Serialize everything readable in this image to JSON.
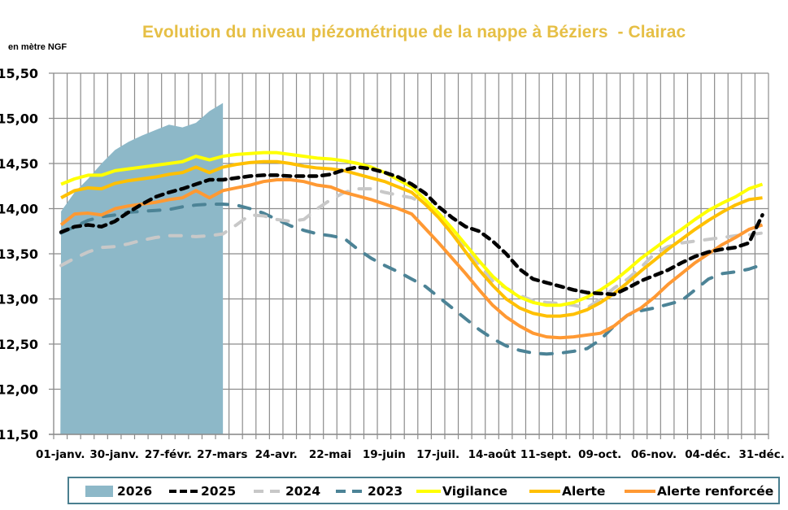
{
  "chart_data": {
    "type": "line",
    "title": "Evolution du niveau piézométrique de la nappe à Béziers  - Clairac",
    "ylabel": "en mètre NGF",
    "xlabel": "",
    "ylim": [
      11.5,
      15.5
    ],
    "yticks": [
      "15,50",
      "15,00",
      "14,50",
      "14,00",
      "13,50",
      "13,00",
      "12,50",
      "12,00",
      "11,50"
    ],
    "ytick_values": [
      15.5,
      15.0,
      14.5,
      14.0,
      13.5,
      13.0,
      12.5,
      12.0,
      11.5
    ],
    "xtick_labels": [
      "01-janv.",
      "30-janv.",
      "27-févr.",
      "27-mars",
      "24-avr.",
      "22-mai",
      "19-juin",
      "17-juil.",
      "14-août",
      "11-sept.",
      "09-oct.",
      "06-nov.",
      "04-déc.",
      "31-déc."
    ],
    "xtick_weeks": [
      0,
      4,
      8,
      12,
      16,
      20,
      24,
      28,
      32,
      36,
      40,
      44,
      48,
      52
    ],
    "n_weeks": 53,
    "grid": true,
    "legend_position": "bottom",
    "series": [
      {
        "name": "2026",
        "style": "area",
        "color": "#8DB8C8",
        "values": [
          13.97,
          14.18,
          14.33,
          14.5,
          14.65,
          14.74,
          14.81,
          14.87,
          14.93,
          14.9,
          14.95,
          15.08,
          15.17
        ]
      },
      {
        "name": "2025",
        "style": "dashed",
        "color": "#000000",
        "values": [
          13.74,
          13.8,
          13.82,
          13.8,
          13.86,
          13.96,
          14.05,
          14.13,
          14.18,
          14.22,
          14.27,
          14.32,
          14.32,
          14.34,
          14.36,
          14.37,
          14.37,
          14.36,
          14.36,
          14.36,
          14.38,
          14.43,
          14.46,
          14.44,
          14.4,
          14.35,
          14.27,
          14.17,
          14.02,
          13.9,
          13.8,
          13.75,
          13.64,
          13.5,
          13.33,
          13.22,
          13.18,
          13.14,
          13.1,
          13.07,
          13.06,
          13.05,
          13.12,
          13.2,
          13.26,
          13.32,
          13.4,
          13.47,
          13.52,
          13.55,
          13.57,
          13.62,
          13.93
        ]
      },
      {
        "name": "2024",
        "style": "dashed",
        "color": "#C8C8C8",
        "values": [
          13.37,
          13.45,
          13.52,
          13.57,
          13.58,
          13.61,
          13.65,
          13.68,
          13.7,
          13.7,
          13.69,
          13.7,
          13.72,
          13.82,
          13.93,
          13.92,
          13.88,
          13.86,
          13.88,
          14.0,
          14.1,
          14.18,
          14.22,
          14.22,
          14.18,
          14.15,
          14.12,
          14.05,
          13.9,
          13.75,
          13.58,
          13.38,
          13.2,
          13.12,
          13.04,
          12.98,
          12.96,
          12.95,
          12.93,
          12.9,
          13.0,
          13.12,
          13.22,
          13.35,
          13.5,
          13.58,
          13.62,
          13.64,
          13.66,
          13.68,
          13.7,
          13.71,
          13.73
        ]
      },
      {
        "name": "2023",
        "style": "dashed",
        "color": "#4C8396",
        "values": [
          13.73,
          13.8,
          13.87,
          13.91,
          13.93,
          13.96,
          13.97,
          13.98,
          13.99,
          14.02,
          14.04,
          14.05,
          14.05,
          14.04,
          14.0,
          13.95,
          13.88,
          13.81,
          13.76,
          13.72,
          13.7,
          13.67,
          13.55,
          13.45,
          13.37,
          13.3,
          13.22,
          13.14,
          13.02,
          12.9,
          12.78,
          12.66,
          12.56,
          12.48,
          12.43,
          12.4,
          12.39,
          12.4,
          12.42,
          12.45,
          12.55,
          12.7,
          12.82,
          12.87,
          12.9,
          12.94,
          12.98,
          13.1,
          13.22,
          13.28,
          13.3,
          13.33,
          13.38
        ]
      },
      {
        "name": "Vigilance",
        "style": "solid",
        "color": "#FFFF00",
        "values": [
          14.27,
          14.33,
          14.37,
          14.37,
          14.42,
          14.44,
          14.46,
          14.48,
          14.5,
          14.52,
          14.58,
          14.54,
          14.58,
          14.6,
          14.61,
          14.62,
          14.62,
          14.6,
          14.58,
          14.56,
          14.55,
          14.53,
          14.5,
          14.46,
          14.4,
          14.32,
          14.24,
          14.1,
          13.95,
          13.78,
          13.6,
          13.42,
          13.25,
          13.12,
          13.02,
          12.96,
          12.93,
          12.93,
          12.96,
          13.02,
          13.1,
          13.2,
          13.32,
          13.45,
          13.56,
          13.67,
          13.77,
          13.88,
          13.98,
          14.06,
          14.13,
          14.22,
          14.27
        ]
      },
      {
        "name": "Alerte",
        "style": "solid",
        "color": "#FFC000",
        "values": [
          14.12,
          14.2,
          14.23,
          14.22,
          14.28,
          14.31,
          14.33,
          14.35,
          14.38,
          14.4,
          14.46,
          14.4,
          14.46,
          14.49,
          14.51,
          14.52,
          14.52,
          14.5,
          14.47,
          14.45,
          14.44,
          14.42,
          14.38,
          14.34,
          14.3,
          14.24,
          14.18,
          14.05,
          13.9,
          13.72,
          13.52,
          13.32,
          13.15,
          13.0,
          12.9,
          12.84,
          12.81,
          12.81,
          12.83,
          12.88,
          12.96,
          13.06,
          13.18,
          13.31,
          13.43,
          13.55,
          13.66,
          13.77,
          13.87,
          13.96,
          14.04,
          14.1,
          14.12
        ]
      },
      {
        "name": "Alerte renforcée",
        "style": "solid",
        "color": "#FF9933",
        "values": [
          13.82,
          13.94,
          13.95,
          13.93,
          14.0,
          14.03,
          14.05,
          14.07,
          14.1,
          14.12,
          14.2,
          14.12,
          14.2,
          14.23,
          14.26,
          14.3,
          14.32,
          14.32,
          14.3,
          14.26,
          14.24,
          14.18,
          14.14,
          14.1,
          14.05,
          14.0,
          13.94,
          13.78,
          13.62,
          13.45,
          13.28,
          13.1,
          12.93,
          12.8,
          12.7,
          12.62,
          12.58,
          12.57,
          12.58,
          12.6,
          12.62,
          12.7,
          12.82,
          12.9,
          13.02,
          13.16,
          13.28,
          13.4,
          13.5,
          13.6,
          13.68,
          13.77,
          13.82
        ]
      }
    ]
  },
  "legend": {
    "items": [
      {
        "label": "2026"
      },
      {
        "label": "2025"
      },
      {
        "label": "2024"
      },
      {
        "label": "2023"
      },
      {
        "label": "Vigilance"
      },
      {
        "label": "Alerte"
      },
      {
        "label": "Alerte renforcée"
      }
    ]
  }
}
